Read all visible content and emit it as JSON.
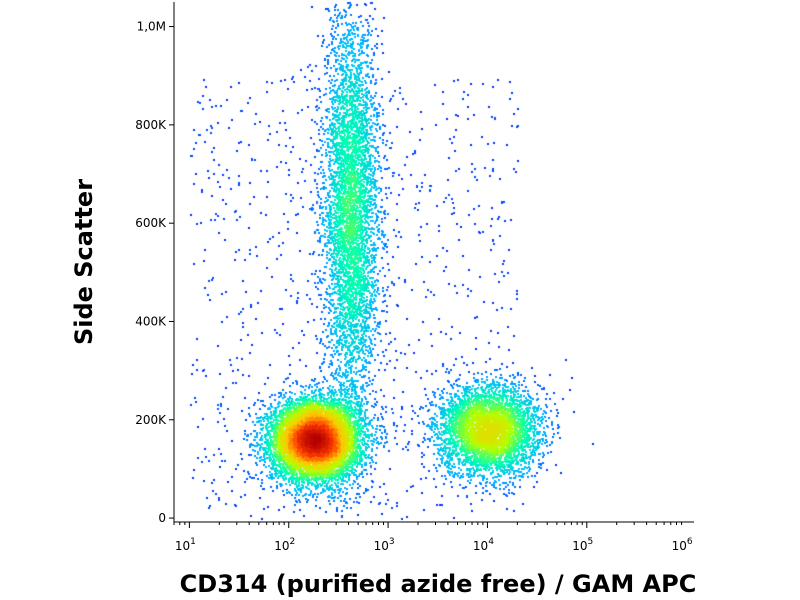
{
  "chart_data": {
    "type": "scatter",
    "style": "flow cytometry density dot plot",
    "xlabel": "CD314 (purified azide free) / GAM APC",
    "ylabel": "Side Scatter",
    "x_scale": "log",
    "xlim": [
      7,
      1200000
    ],
    "ylim": [
      -8000,
      1050000
    ],
    "x_ticks": [
      {
        "value": 10,
        "base": "10",
        "exp": "1"
      },
      {
        "value": 100,
        "base": "10",
        "exp": "2"
      },
      {
        "value": 1000,
        "base": "10",
        "exp": "3"
      },
      {
        "value": 10000,
        "base": "10",
        "exp": "4"
      },
      {
        "value": 100000,
        "base": "10",
        "exp": "5"
      },
      {
        "value": 1000000,
        "base": "10",
        "exp": "6"
      }
    ],
    "y_ticks": [
      {
        "value": 0,
        "label": "0"
      },
      {
        "value": 200000,
        "label": "200K"
      },
      {
        "value": 400000,
        "label": "400K"
      },
      {
        "value": 600000,
        "label": "600K"
      },
      {
        "value": 800000,
        "label": "800K"
      },
      {
        "value": 1000000,
        "label": "1,0M"
      }
    ],
    "color_scale": [
      "#0000ff",
      "#00b4ff",
      "#00ffb4",
      "#b4ff00",
      "#ffc800",
      "#ff3c00",
      "#b40000"
    ],
    "populations": [
      {
        "x_center": 180,
        "y_center": 160000,
        "x_spread_decades": 0.22,
        "y_spread": 40000,
        "relative_density": 1.0
      },
      {
        "x_center": 420,
        "y_center": 620000,
        "x_spread_decades": 0.14,
        "y_spread": 210000,
        "relative_density": 0.55
      },
      {
        "x_center": 10000,
        "y_center": 180000,
        "x_spread_decades": 0.25,
        "y_spread": 45000,
        "relative_density": 0.5
      }
    ]
  }
}
